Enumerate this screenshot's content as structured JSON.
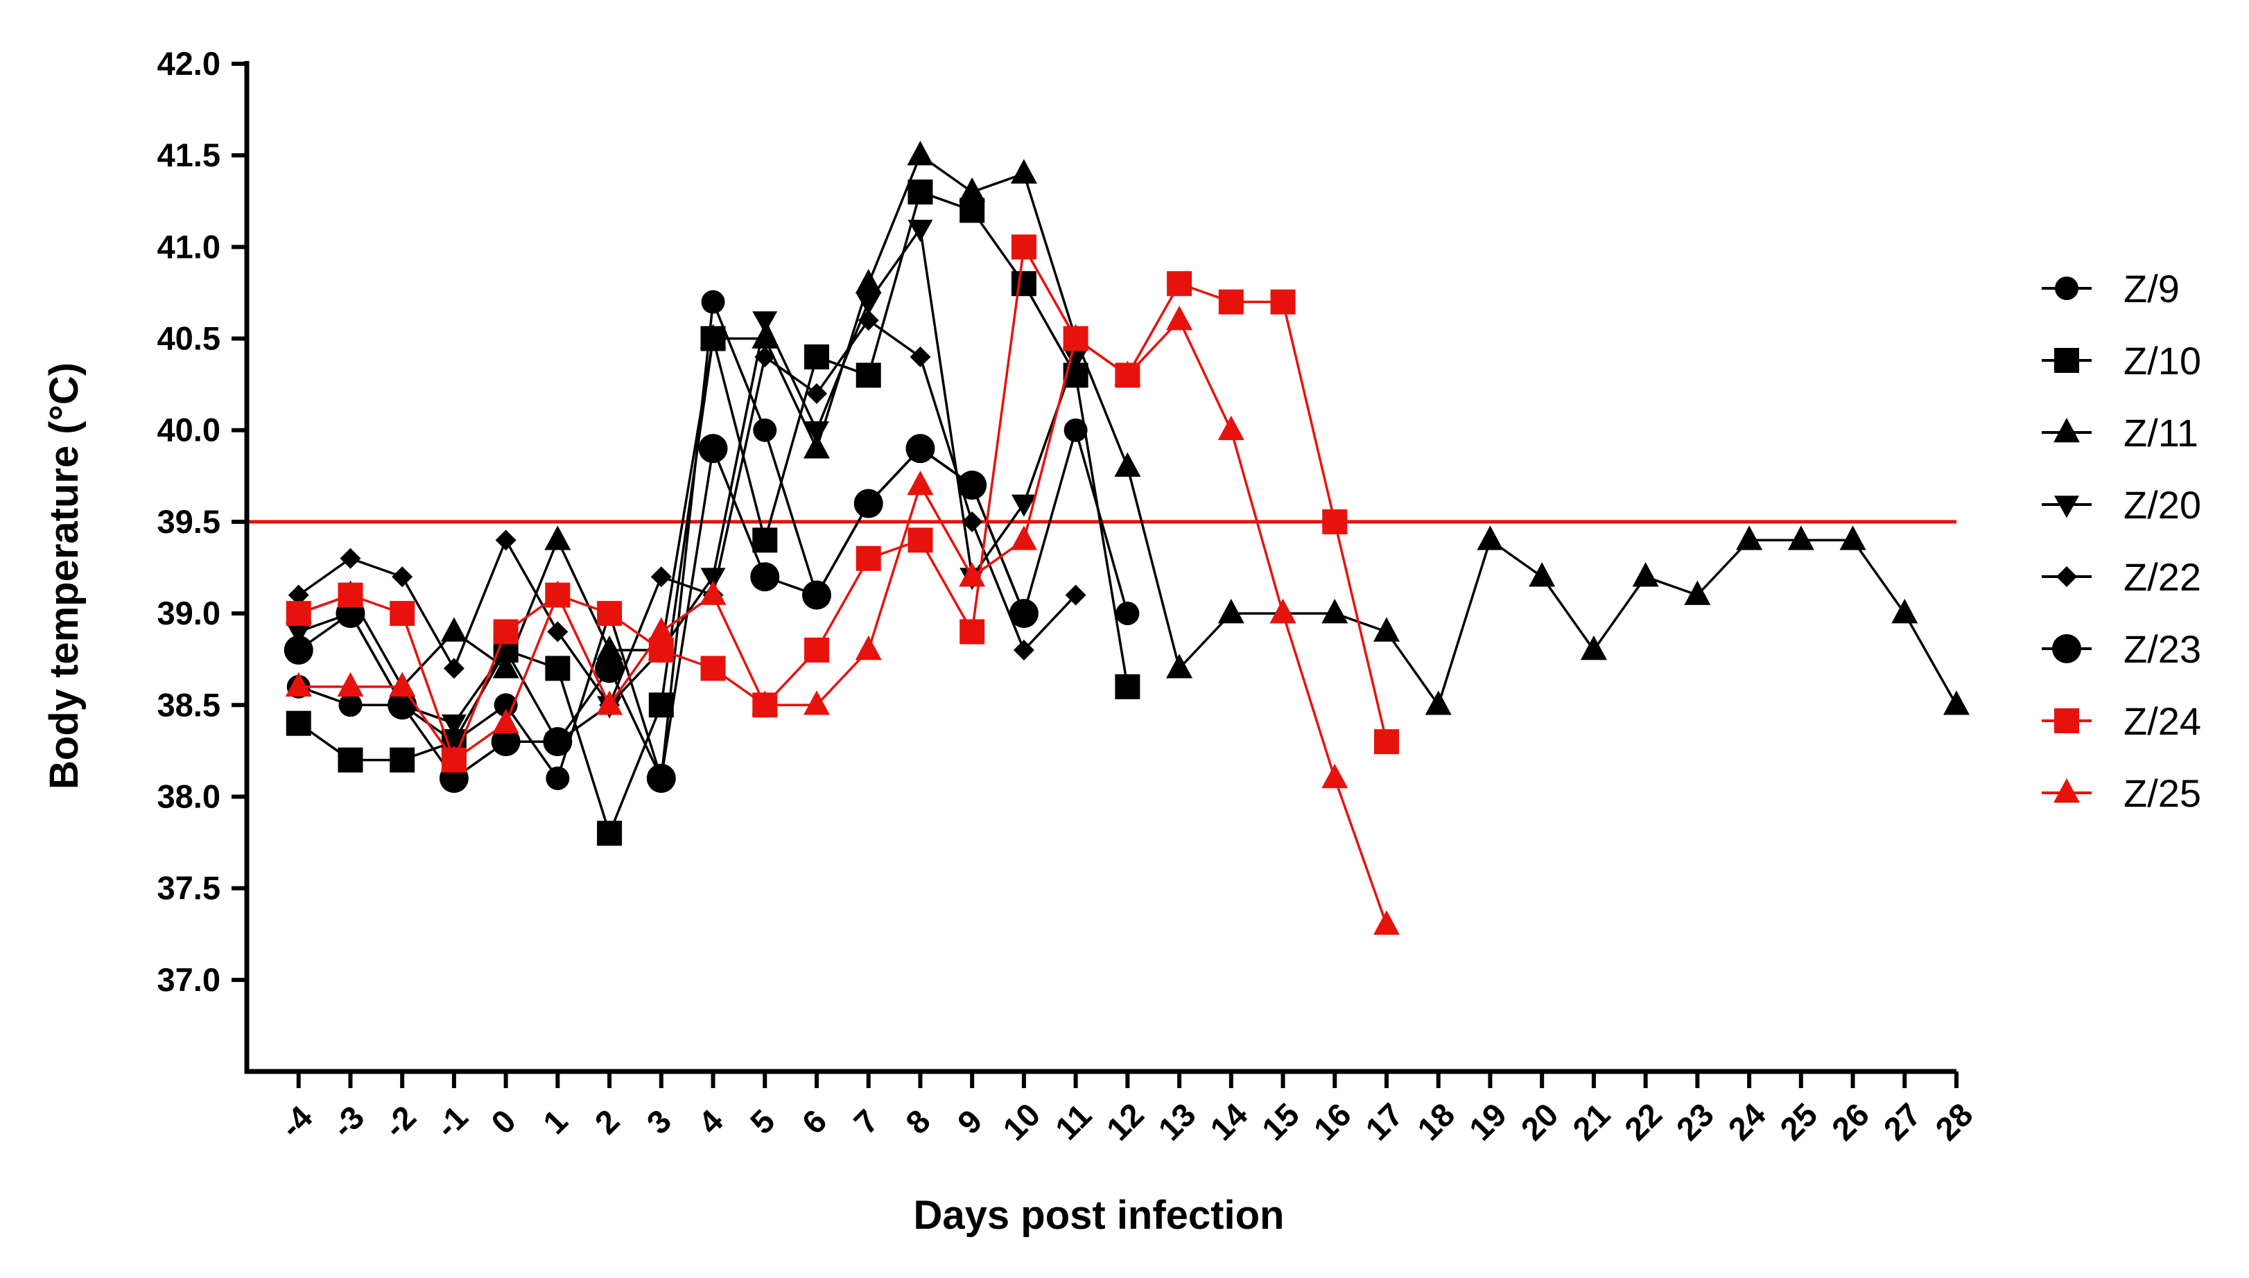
{
  "chart_data": {
    "type": "line",
    "title": "",
    "xlabel": "Days post infection",
    "ylabel": "Body temperature (°C)",
    "ylim": [
      36.5,
      42.0
    ],
    "yticks": [
      "37.0",
      "37.5",
      "38.0",
      "38.5",
      "39.0",
      "39.5",
      "40.0",
      "40.5",
      "41.0",
      "41.5",
      "42.0"
    ],
    "xlim": [
      -5,
      28
    ],
    "xticks": [
      "-4",
      "-3",
      "-2",
      "-1",
      "0",
      "1",
      "2",
      "3",
      "4",
      "5",
      "6",
      "7",
      "8",
      "9",
      "10",
      "11",
      "12",
      "13",
      "14",
      "15",
      "16",
      "17",
      "18",
      "19",
      "20",
      "21",
      "22",
      "23",
      "24",
      "25",
      "26",
      "27",
      "28"
    ],
    "threshold": {
      "value": 39.5,
      "color": "#e8120c"
    },
    "legend_position": "right",
    "series": [
      {
        "name": "Z/9",
        "marker": "circle",
        "color": "#000000",
        "x": [
          -4,
          -3,
          -2,
          -1,
          0,
          1,
          2,
          3,
          4,
          5,
          6,
          7,
          8,
          9,
          10,
          11,
          12
        ],
        "y": [
          38.6,
          38.5,
          38.5,
          38.3,
          38.5,
          38.1,
          39.0,
          38.1,
          40.7,
          40.0,
          39.1,
          39.6,
          39.9,
          39.7,
          39.0,
          40.0,
          39.0
        ]
      },
      {
        "name": "Z/10",
        "marker": "square",
        "color": "#000000",
        "x": [
          -4,
          -3,
          -2,
          -1,
          0,
          1,
          2,
          3,
          4,
          5,
          6,
          7,
          8,
          9,
          10,
          11,
          12
        ],
        "y": [
          38.4,
          38.2,
          38.2,
          38.3,
          38.8,
          38.7,
          37.8,
          38.5,
          40.5,
          39.4,
          40.4,
          40.3,
          41.3,
          41.2,
          40.8,
          40.3,
          38.6
        ]
      },
      {
        "name": "Z/11",
        "marker": "triangle-up",
        "color": "#000000",
        "x": [
          -4,
          -3,
          -2,
          -1,
          0,
          1,
          2,
          3,
          4,
          5,
          6,
          7,
          8,
          9,
          10,
          11,
          12,
          13,
          14,
          15,
          16,
          17,
          18,
          19,
          20,
          21,
          22,
          23,
          24,
          25,
          26,
          27,
          28
        ],
        "y": [
          39.0,
          39.1,
          38.6,
          38.9,
          38.7,
          39.4,
          38.8,
          38.8,
          40.5,
          40.5,
          39.9,
          40.8,
          41.5,
          41.3,
          41.4,
          40.5,
          39.8,
          38.7,
          39.0,
          39.0,
          39.0,
          38.9,
          38.5,
          39.4,
          39.2,
          38.8,
          39.2,
          39.1,
          39.4,
          39.4,
          39.4,
          39.0,
          38.5
        ]
      },
      {
        "name": "Z/20",
        "marker": "triangle-down",
        "color": "#000000",
        "x": [
          -4,
          -3,
          -2,
          -1,
          0,
          1,
          2,
          3,
          4,
          5,
          6,
          7,
          8,
          9,
          10,
          11
        ],
        "y": [
          38.9,
          39.0,
          38.5,
          38.4,
          38.8,
          38.3,
          38.5,
          38.8,
          39.2,
          40.6,
          40.0,
          40.7,
          41.1,
          39.2,
          39.6,
          40.4
        ]
      },
      {
        "name": "Z/22",
        "marker": "diamond",
        "color": "#000000",
        "x": [
          -4,
          -3,
          -2,
          -1,
          0,
          1,
          2,
          3,
          4,
          5,
          6,
          7,
          8,
          9,
          10,
          11
        ],
        "y": [
          39.1,
          39.3,
          39.2,
          38.7,
          39.4,
          38.9,
          38.5,
          39.2,
          39.1,
          40.4,
          40.2,
          40.6,
          40.4,
          39.5,
          38.8,
          39.1
        ]
      },
      {
        "name": "Z/23",
        "marker": "circle-large",
        "color": "#000000",
        "x": [
          -4,
          -3,
          -2,
          -1,
          0,
          1,
          2,
          3,
          4,
          5,
          6,
          7,
          8,
          9,
          10
        ],
        "y": [
          38.8,
          39.0,
          38.5,
          38.1,
          38.3,
          38.3,
          38.7,
          38.1,
          39.9,
          39.2,
          39.1,
          39.6,
          39.9,
          39.7,
          39.0
        ]
      },
      {
        "name": "Z/24",
        "marker": "square",
        "color": "#e8120c",
        "x": [
          -4,
          -3,
          -2,
          -1,
          0,
          1,
          2,
          3,
          4,
          5,
          6,
          7,
          8,
          9,
          10,
          11,
          12,
          13,
          14,
          15,
          16,
          17
        ],
        "y": [
          39.0,
          39.1,
          39.0,
          38.2,
          38.9,
          39.1,
          39.0,
          38.8,
          38.7,
          38.5,
          38.8,
          39.3,
          39.4,
          38.9,
          41.0,
          40.5,
          40.3,
          40.8,
          40.7,
          40.7,
          39.5,
          38.3
        ]
      },
      {
        "name": "Z/25",
        "marker": "triangle-up",
        "color": "#e8120c",
        "x": [
          -4,
          -3,
          -2,
          -1,
          0,
          1,
          2,
          3,
          4,
          5,
          6,
          7,
          8,
          9,
          10,
          11,
          12,
          13,
          14,
          15,
          16,
          17
        ],
        "y": [
          38.6,
          38.6,
          38.6,
          38.2,
          38.4,
          39.1,
          38.5,
          38.9,
          39.1,
          38.5,
          38.5,
          38.8,
          39.7,
          39.2,
          39.4,
          40.5,
          40.3,
          40.6,
          40.0,
          39.0,
          38.1,
          37.3
        ]
      }
    ]
  }
}
